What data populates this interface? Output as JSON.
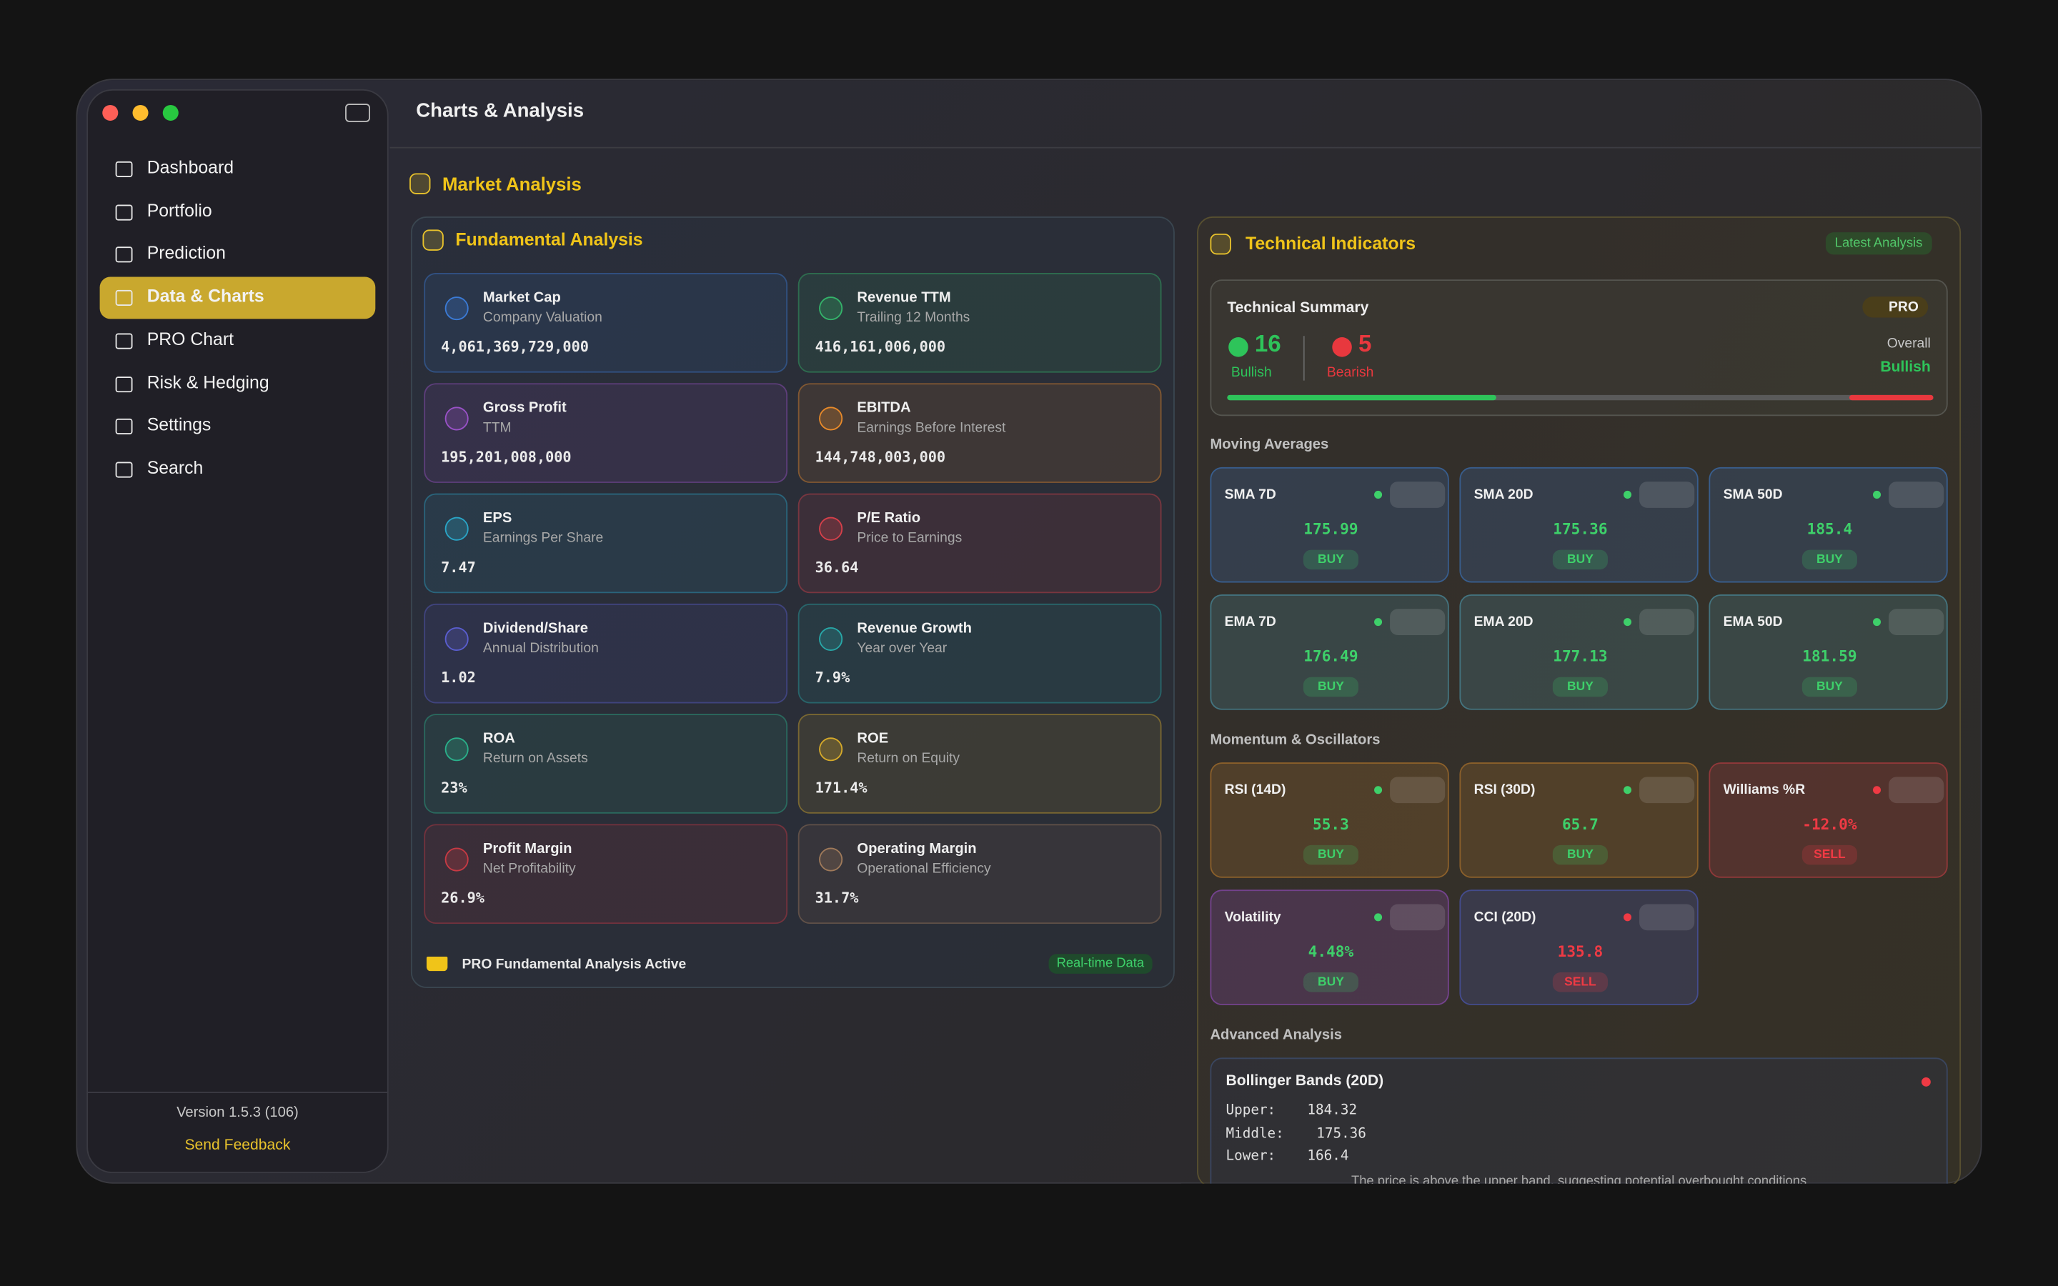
{
  "window": {
    "title": "Charts & Analysis"
  },
  "sidebar": {
    "items": [
      "Dashboard",
      "Portfolio",
      "Prediction",
      "Data & Charts",
      "PRO Chart",
      "Risk & Hedging",
      "Settings",
      "Search"
    ],
    "active": 3,
    "version": "Version 1.5.3 (106)",
    "feedback": "Send Feedback"
  },
  "section": "Market Analysis",
  "fundamental": {
    "title": "Fundamental Analysis",
    "cards": [
      {
        "name": "Market Cap",
        "sub": "Company Valuation",
        "value": "4,061,369,729,000",
        "color": "#3b7bd6"
      },
      {
        "name": "Revenue TTM",
        "sub": "Trailing 12 Months",
        "value": "416,161,006,000",
        "color": "#34b36a"
      },
      {
        "name": "Gross Profit",
        "sub": "TTM",
        "value": "195,201,008,000",
        "color": "#9a52c8"
      },
      {
        "name": "EBITDA",
        "sub": "Earnings Before Interest",
        "value": "144,748,003,000",
        "color": "#e88a2a"
      },
      {
        "name": "EPS",
        "sub": "Earnings Per Share",
        "value": "7.47",
        "color": "#2aa6c8"
      },
      {
        "name": "P/E Ratio",
        "sub": "Price to Earnings",
        "value": "36.64",
        "color": "#d6404a"
      },
      {
        "name": "Dividend/Share",
        "sub": "Annual Distribution",
        "value": "1.02",
        "color": "#5a5ed0"
      },
      {
        "name": "Revenue Growth",
        "sub": "Year over Year",
        "value": "7.9%",
        "color": "#28a8a8"
      },
      {
        "name": "ROA",
        "sub": "Return on Assets",
        "value": "23%",
        "color": "#2ab08a"
      },
      {
        "name": "ROE",
        "sub": "Return on Equity",
        "value": "171.4%",
        "color": "#d6aa2a"
      },
      {
        "name": "Profit Margin",
        "sub": "Net Profitability",
        "value": "26.9%",
        "color": "#c83a44"
      },
      {
        "name": "Operating Margin",
        "sub": "Operational Efficiency",
        "value": "31.7%",
        "color": "#a07a5a"
      }
    ],
    "footer": "PRO Fundamental Analysis Active",
    "badge": "Real-time Data"
  },
  "technical": {
    "title": "Technical Indicators",
    "badge": "Latest Analysis",
    "summary": {
      "title": "Technical Summary",
      "pro": "PRO",
      "bullish": 16,
      "bullish_label": "Bullish",
      "bearish": 5,
      "bearish_label": "Bearish",
      "overall": "Overall",
      "overall_value": "Bullish"
    },
    "groups": [
      {
        "title": "Moving Averages",
        "cards": [
          {
            "name": "SMA 7D",
            "value": "175.99",
            "signal": "BUY",
            "color": "#3a6db0"
          },
          {
            "name": "SMA 20D",
            "value": "175.36",
            "signal": "BUY",
            "color": "#3a6db0"
          },
          {
            "name": "SMA 50D",
            "value": "185.4",
            "signal": "BUY",
            "color": "#3a6db0"
          },
          {
            "name": "EMA 7D",
            "value": "176.49",
            "signal": "BUY",
            "color": "#4a8c9c"
          },
          {
            "name": "EMA 20D",
            "value": "177.13",
            "signal": "BUY",
            "color": "#4a8c9c"
          },
          {
            "name": "EMA 50D",
            "value": "181.59",
            "signal": "BUY",
            "color": "#4a8c9c"
          }
        ]
      },
      {
        "title": "Momentum & Oscillators",
        "cards": [
          {
            "name": "RSI (14D)",
            "value": "55.3",
            "signal": "BUY",
            "color": "#a8702c"
          },
          {
            "name": "RSI (30D)",
            "value": "65.7",
            "signal": "BUY",
            "color": "#a8702c"
          },
          {
            "name": "Williams %R",
            "value": "-12.0%",
            "signal": "SELL",
            "color": "#b03a40"
          },
          {
            "name": "Volatility",
            "value": "4.48%",
            "signal": "BUY",
            "color": "#8a4ab0"
          },
          {
            "name": "CCI (20D)",
            "value": "135.8",
            "signal": "SELL",
            "color": "#4a56b0"
          }
        ]
      }
    ],
    "advanced": {
      "title": "Advanced Analysis",
      "name": "Bollinger Bands (20D)",
      "lines": [
        {
          "label": "Upper:",
          "value": "184.32"
        },
        {
          "label": "Middle:",
          "value": "175.36"
        },
        {
          "label": "Lower:",
          "value": "166.4"
        }
      ],
      "note": "The price is above the upper band, suggesting potential overbought conditions"
    }
  }
}
